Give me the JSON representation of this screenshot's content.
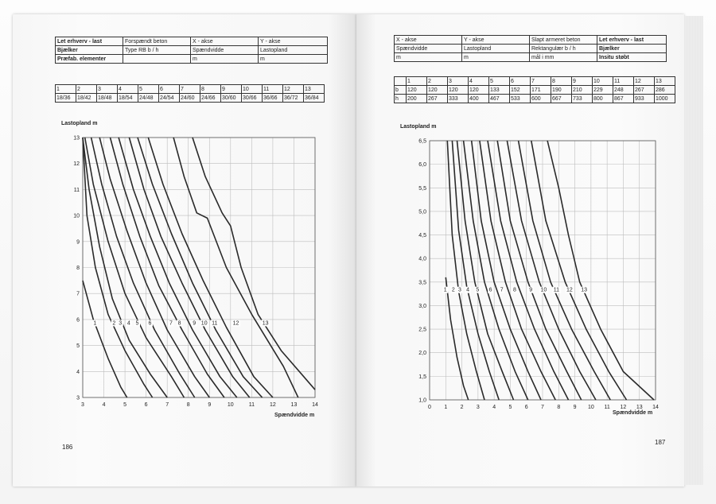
{
  "left_page": {
    "info_table": [
      [
        {
          "t": "Let erhverv - last",
          "b": true
        },
        {
          "t": "Forspændt beton"
        },
        {
          "t": "X - akse"
        },
        {
          "t": "Y - akse"
        }
      ],
      [
        {
          "t": "Bjælker",
          "b": true
        },
        {
          "t": "Type RB  b / h"
        },
        {
          "t": "Spændvidde"
        },
        {
          "t": "Lastopland"
        }
      ],
      [
        {
          "t": "Præfab. elementer",
          "b": true
        },
        {
          "t": ""
        },
        {
          "t": "m"
        },
        {
          "t": "m"
        }
      ]
    ],
    "dim_table": {
      "numbers": [
        "1",
        "2",
        "3",
        "4",
        "5",
        "6",
        "7",
        "8",
        "9",
        "10",
        "11",
        "12",
        "13"
      ],
      "values": [
        "18/36",
        "18/42",
        "18/48",
        "18/54",
        "24/48",
        "24/54",
        "24/60",
        "24/66",
        "30/60",
        "30/66",
        "36/66",
        "36/72",
        "36/84"
      ]
    },
    "page_number": "186"
  },
  "right_page": {
    "info_table": [
      [
        {
          "t": "X - akse"
        },
        {
          "t": "Y - akse"
        },
        {
          "t": "Slapt armeret beton"
        },
        {
          "t": "Let erhverv - last",
          "b": true
        }
      ],
      [
        {
          "t": "Spændvidde"
        },
        {
          "t": "Lastopland"
        },
        {
          "t": "Rektangulær  b / h"
        },
        {
          "t": "Bjælker",
          "b": true
        }
      ],
      [
        {
          "t": "m"
        },
        {
          "t": "m"
        },
        {
          "t": "mål i mm"
        },
        {
          "t": "Insitu støbt",
          "b": true
        }
      ]
    ],
    "dim_table": {
      "numbers": [
        "1",
        "2",
        "3",
        "4",
        "5",
        "6",
        "7",
        "8",
        "9",
        "10",
        "11",
        "12",
        "13"
      ],
      "b": [
        "120",
        "120",
        "120",
        "120",
        "133",
        "152",
        "171",
        "190",
        "210",
        "229",
        "248",
        "267",
        "286"
      ],
      "h": [
        "200",
        "267",
        "333",
        "400",
        "467",
        "533",
        "600",
        "667",
        "733",
        "800",
        "867",
        "933",
        "1000"
      ],
      "b_label": "b",
      "h_label": "h"
    },
    "page_number": "187"
  },
  "chart_data": [
    {
      "type": "line",
      "ylabel": "Lastopland  m",
      "xlabel": "Spændvidde  m",
      "xlim": [
        3,
        14
      ],
      "ylim": [
        3,
        13
      ],
      "x_ticks": [
        "3",
        "4",
        "5",
        "6",
        "7",
        "8",
        "9",
        "10",
        "11",
        "12",
        "13",
        "14"
      ],
      "y_ticks": [
        "3",
        "4",
        "5",
        "6",
        "7",
        "8",
        "9",
        "10",
        "11",
        "12",
        "13"
      ],
      "grid": true,
      "curve_labels": [
        {
          "text": "1",
          "x": 3.6,
          "y": 5.8
        },
        {
          "text": "2",
          "x": 4.5,
          "y": 5.8
        },
        {
          "text": "3",
          "x": 4.8,
          "y": 5.8
        },
        {
          "text": "4",
          "x": 5.2,
          "y": 5.8
        },
        {
          "text": "5",
          "x": 5.6,
          "y": 5.8
        },
        {
          "text": "6",
          "x": 6.2,
          "y": 5.8
        },
        {
          "text": "7",
          "x": 7.2,
          "y": 5.8
        },
        {
          "text": "8",
          "x": 7.6,
          "y": 5.8
        },
        {
          "text": "9",
          "x": 8.3,
          "y": 5.8
        },
        {
          "text": "10",
          "x": 8.7,
          "y": 5.8
        },
        {
          "text": "11",
          "x": 9.2,
          "y": 5.8
        },
        {
          "text": "12",
          "x": 10.2,
          "y": 5.8
        },
        {
          "text": "13",
          "x": 11.6,
          "y": 5.8
        }
      ],
      "series": [
        {
          "name": "1",
          "x": [
            3.0,
            3.5,
            4.2,
            4.8,
            5.1
          ],
          "y": [
            7.5,
            6.0,
            4.5,
            3.4,
            3.0
          ]
        },
        {
          "name": "2",
          "x": [
            3.0,
            3.2,
            3.6,
            4.2,
            5.0,
            5.9,
            6.3
          ],
          "y": [
            13.0,
            10.0,
            8.0,
            6.2,
            4.8,
            3.5,
            3.0
          ]
        },
        {
          "name": "3",
          "x": [
            3.0,
            3.3,
            3.8,
            4.4,
            5.2,
            6.2,
            7.0
          ],
          "y": [
            13.0,
            11.0,
            8.8,
            6.8,
            5.2,
            3.9,
            3.0
          ]
        },
        {
          "name": "4",
          "x": [
            3.1,
            3.5,
            4.2,
            5.0,
            6.0,
            7.2,
            7.8
          ],
          "y": [
            13.0,
            11.2,
            9.0,
            7.0,
            5.3,
            3.8,
            3.0
          ]
        },
        {
          "name": "5",
          "x": [
            3.4,
            3.9,
            4.6,
            5.4,
            6.4,
            7.6,
            8.3
          ],
          "y": [
            13.0,
            11.2,
            9.2,
            7.4,
            5.6,
            3.9,
            3.0
          ]
        },
        {
          "name": "6",
          "x": [
            3.8,
            4.3,
            5.1,
            6.0,
            7.0,
            8.3,
            9.0
          ],
          "y": [
            13.0,
            11.4,
            9.4,
            7.4,
            5.6,
            3.8,
            3.0
          ]
        },
        {
          "name": "7",
          "x": [
            4.3,
            4.9,
            5.7,
            6.6,
            7.7,
            8.9,
            9.7
          ],
          "y": [
            13.0,
            11.2,
            9.2,
            7.3,
            5.6,
            3.9,
            3.0
          ]
        },
        {
          "name": "8",
          "x": [
            4.7,
            5.4,
            6.2,
            7.1,
            8.2,
            9.5,
            10.3
          ],
          "y": [
            13.0,
            11.0,
            9.2,
            7.4,
            5.6,
            3.8,
            3.0
          ]
        },
        {
          "name": "9",
          "x": [
            5.2,
            5.9,
            6.7,
            7.7,
            8.8,
            10.1,
            10.9
          ],
          "y": [
            13.0,
            11.0,
            9.2,
            7.4,
            5.6,
            3.8,
            3.0
          ]
        },
        {
          "name": "10",
          "x": [
            5.6,
            6.3,
            7.2,
            8.2,
            9.3,
            10.6,
            11.5
          ],
          "y": [
            13.0,
            11.2,
            9.3,
            7.4,
            5.6,
            3.8,
            3.0
          ]
        },
        {
          "name": "11",
          "x": [
            6.1,
            6.8,
            7.7,
            8.7,
            9.8,
            11.1,
            12.0
          ],
          "y": [
            13.0,
            11.2,
            9.3,
            7.5,
            5.7,
            3.8,
            3.0
          ]
        },
        {
          "name": "12",
          "x": [
            7.3,
            7.8,
            8.4,
            8.9,
            9.8,
            11.0,
            12.5,
            13.2
          ],
          "y": [
            13.0,
            11.5,
            10.1,
            9.9,
            8.0,
            6.2,
            4.2,
            3.0
          ]
        },
        {
          "name": "13",
          "x": [
            8.2,
            8.8,
            9.6,
            10.0,
            10.5,
            11.3,
            12.4,
            14.0
          ],
          "y": [
            13.0,
            11.5,
            10.1,
            9.6,
            8.0,
            6.2,
            4.8,
            3.3
          ]
        }
      ]
    },
    {
      "type": "line",
      "ylabel": "Lastopland  m",
      "xlabel": "Spændvidde  m",
      "xlim": [
        0,
        14
      ],
      "ylim": [
        1.0,
        6.5
      ],
      "x_ticks": [
        "0",
        "1",
        "2",
        "3",
        "4",
        "5",
        "6",
        "7",
        "8",
        "9",
        "10",
        "11",
        "12",
        "13",
        "14"
      ],
      "y_ticks": [
        "1,0",
        "1,5",
        "2,0",
        "2,5",
        "3,0",
        "3,5",
        "4,0",
        "4,5",
        "5,0",
        "5,5",
        "6,0",
        "6,5"
      ],
      "grid": true,
      "curve_labels": [
        {
          "text": "1",
          "x": 1.0,
          "y": 3.3
        },
        {
          "text": "2",
          "x": 1.5,
          "y": 3.3
        },
        {
          "text": "3",
          "x": 1.9,
          "y": 3.3
        },
        {
          "text": "4",
          "x": 2.4,
          "y": 3.3
        },
        {
          "text": "5",
          "x": 3.0,
          "y": 3.3
        },
        {
          "text": "6",
          "x": 3.8,
          "y": 3.3
        },
        {
          "text": "7",
          "x": 4.5,
          "y": 3.3
        },
        {
          "text": "8",
          "x": 5.3,
          "y": 3.3
        },
        {
          "text": "9",
          "x": 6.3,
          "y": 3.3
        },
        {
          "text": "10",
          "x": 7.0,
          "y": 3.3
        },
        {
          "text": "11",
          "x": 7.8,
          "y": 3.3
        },
        {
          "text": "12",
          "x": 8.6,
          "y": 3.3
        },
        {
          "text": "13",
          "x": 9.5,
          "y": 3.3
        }
      ],
      "series": [
        {
          "name": "1",
          "x": [
            1.0,
            1.3,
            1.7,
            2.1,
            2.4
          ],
          "y": [
            3.6,
            2.7,
            1.9,
            1.3,
            1.0
          ]
        },
        {
          "name": "2",
          "x": [
            1.1,
            1.4,
            1.8,
            2.3,
            2.9,
            3.4
          ],
          "y": [
            6.5,
            4.5,
            3.3,
            2.4,
            1.6,
            1.0
          ]
        },
        {
          "name": "3",
          "x": [
            1.4,
            1.8,
            2.3,
            3.0,
            3.7,
            4.3
          ],
          "y": [
            6.5,
            4.6,
            3.4,
            2.4,
            1.6,
            1.0
          ]
        },
        {
          "name": "4",
          "x": [
            1.7,
            2.2,
            2.8,
            3.6,
            4.5,
            5.2
          ],
          "y": [
            6.5,
            4.8,
            3.5,
            2.4,
            1.6,
            1.0
          ]
        },
        {
          "name": "5",
          "x": [
            2.1,
            2.7,
            3.4,
            4.3,
            5.3,
            6.1
          ],
          "y": [
            6.5,
            4.8,
            3.5,
            2.5,
            1.6,
            1.0
          ]
        },
        {
          "name": "6",
          "x": [
            2.6,
            3.2,
            4.0,
            5.0,
            6.1,
            6.9
          ],
          "y": [
            6.5,
            4.8,
            3.5,
            2.5,
            1.6,
            1.0
          ]
        },
        {
          "name": "7",
          "x": [
            3.1,
            3.8,
            4.7,
            5.7,
            6.9,
            7.8
          ],
          "y": [
            6.5,
            4.8,
            3.5,
            2.5,
            1.6,
            1.0
          ]
        },
        {
          "name": "8",
          "x": [
            3.6,
            4.4,
            5.4,
            6.5,
            7.7,
            8.6
          ],
          "y": [
            6.5,
            4.8,
            3.5,
            2.5,
            1.6,
            1.0
          ]
        },
        {
          "name": "9",
          "x": [
            4.2,
            5.0,
            6.1,
            7.2,
            8.5,
            9.4
          ],
          "y": [
            6.5,
            4.8,
            3.5,
            2.5,
            1.6,
            1.0
          ]
        },
        {
          "name": "10",
          "x": [
            4.8,
            5.7,
            6.8,
            8.0,
            9.3,
            10.3
          ],
          "y": [
            6.5,
            4.8,
            3.5,
            2.5,
            1.6,
            1.0
          ]
        },
        {
          "name": "11",
          "x": [
            5.5,
            6.4,
            7.5,
            8.8,
            10.2,
            11.2
          ],
          "y": [
            6.5,
            4.8,
            3.5,
            2.5,
            1.6,
            1.0
          ]
        },
        {
          "name": "12",
          "x": [
            6.3,
            7.2,
            8.4,
            9.7,
            11.1,
            12.2
          ],
          "y": [
            6.5,
            4.8,
            3.5,
            2.5,
            1.6,
            1.0
          ]
        },
        {
          "name": "13",
          "x": [
            7.3,
            8.0,
            8.6,
            9.3,
            10.6,
            12.0,
            13.9
          ],
          "y": [
            6.5,
            5.5,
            4.5,
            3.5,
            2.5,
            1.6,
            1.0
          ]
        }
      ]
    }
  ]
}
